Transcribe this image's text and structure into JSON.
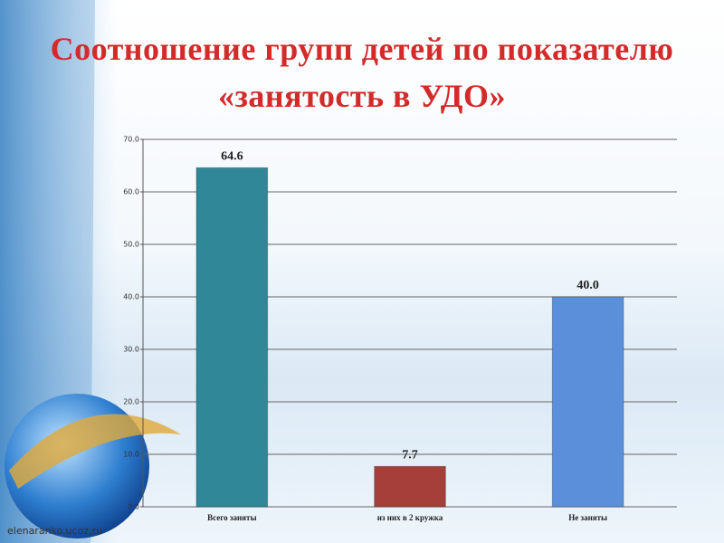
{
  "chart_data": {
    "type": "bar",
    "title": "Соотношение групп детей по показателю «занятость в УДО»",
    "categories": [
      "Всего заняты",
      "из них в 2 кружка",
      "Не заняты"
    ],
    "values": [
      64.6,
      7.7,
      40.0
    ],
    "value_labels": [
      "64.6",
      "7.7",
      "40.0"
    ],
    "colors": [
      "#2f8798",
      "#a63f3a",
      "#5b8fd9"
    ],
    "ylim": [
      0,
      70
    ],
    "yticks": [
      {
        "value": 0,
        "label": "0.0"
      },
      {
        "value": 10,
        "label": "10.0"
      },
      {
        "value": 20,
        "label": "20.0"
      },
      {
        "value": 30,
        "label": "30.0"
      },
      {
        "value": 40,
        "label": "40.0"
      },
      {
        "value": 50,
        "label": "50.0"
      },
      {
        "value": 60,
        "label": "60.0"
      },
      {
        "value": 70,
        "label": "70.0"
      }
    ],
    "grid": true,
    "source": "elenaranko.ucoz.ru"
  }
}
